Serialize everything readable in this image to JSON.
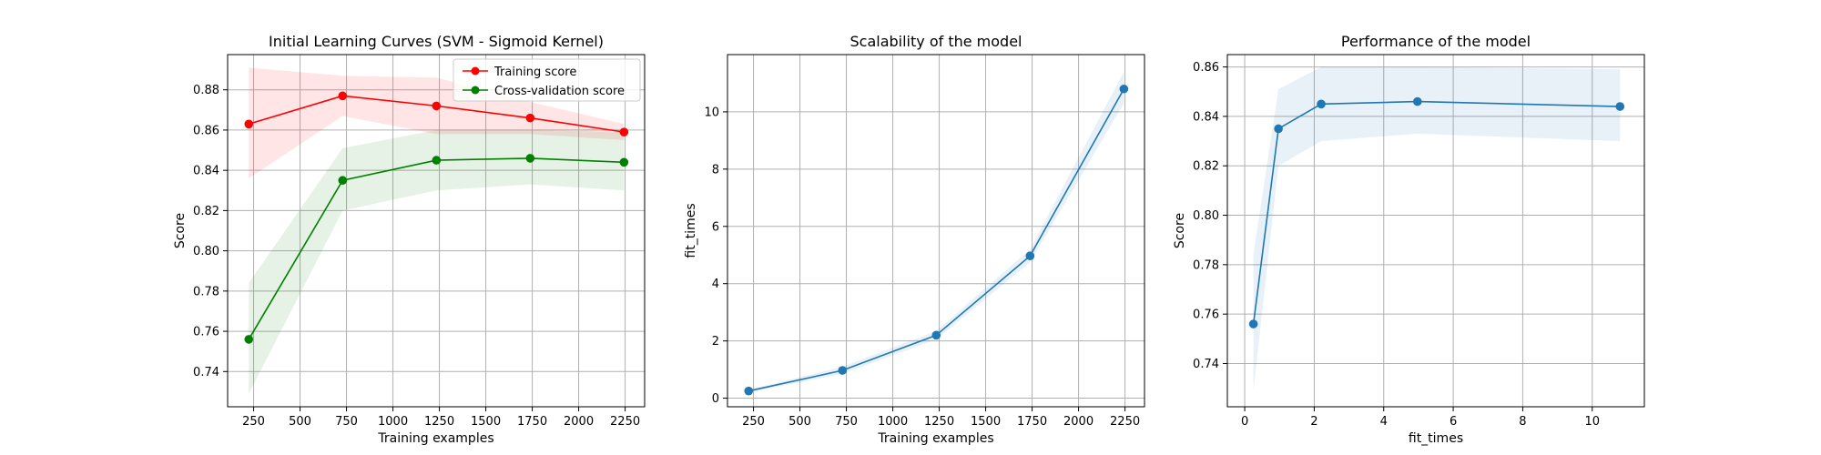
{
  "chart_data": [
    {
      "type": "line",
      "title": "Initial Learning Curves (SVM - Sigmoid Kernel)",
      "xlabel": "Training examples",
      "ylabel": "Score",
      "x": [
        224,
        729,
        1234,
        1739,
        2244
      ],
      "xlim": [
        110,
        2355
      ],
      "ylim": [
        0.7225,
        0.8975
      ],
      "xticks": [
        250,
        500,
        750,
        1000,
        1250,
        1500,
        1750,
        2000,
        2250
      ],
      "yticks": [
        0.74,
        0.76,
        0.78,
        0.8,
        0.82,
        0.84,
        0.86,
        0.88
      ],
      "ytick_decimals": 2,
      "grid": true,
      "legend": "top-right",
      "series": [
        {
          "name": "Training score",
          "color": "#ff0000",
          "values": [
            0.863,
            0.877,
            0.872,
            0.866,
            0.859
          ],
          "band_low": [
            0.836,
            0.867,
            0.858,
            0.858,
            0.855
          ],
          "band_high": [
            0.891,
            0.887,
            0.886,
            0.874,
            0.863
          ]
        },
        {
          "name": "Cross-validation score",
          "color": "#008000",
          "values": [
            0.756,
            0.835,
            0.845,
            0.846,
            0.844
          ],
          "band_low": [
            0.729,
            0.82,
            0.83,
            0.833,
            0.83
          ],
          "band_high": [
            0.784,
            0.851,
            0.86,
            0.86,
            0.859
          ]
        }
      ]
    },
    {
      "type": "line",
      "title": "Scalability of the model",
      "xlabel": "Training examples",
      "ylabel": "fit_times",
      "x": [
        224,
        729,
        1234,
        1739,
        2244
      ],
      "xlim": [
        110,
        2355
      ],
      "ylim": [
        -0.3,
        12.0
      ],
      "xticks": [
        250,
        500,
        750,
        1000,
        1250,
        1500,
        1750,
        2000,
        2250
      ],
      "yticks": [
        0,
        2,
        4,
        6,
        8,
        10
      ],
      "ytick_decimals": 0,
      "grid": true,
      "series": [
        {
          "color": "#1f77b4",
          "values": [
            0.25,
            0.97,
            2.2,
            4.97,
            10.8
          ],
          "band_low": [
            0.2,
            0.85,
            2.05,
            4.75,
            10.3
          ],
          "band_high": [
            0.3,
            1.1,
            2.35,
            5.2,
            11.4
          ]
        }
      ]
    },
    {
      "type": "line",
      "title": "Performance of the model",
      "xlabel": "fit_times",
      "ylabel": "Score",
      "x": [
        0.25,
        0.97,
        2.2,
        4.97,
        10.8
      ],
      "xlim": [
        -0.5,
        11.5
      ],
      "ylim": [
        0.7225,
        0.865
      ],
      "xticks": [
        0,
        2,
        4,
        6,
        8,
        10
      ],
      "yticks": [
        0.74,
        0.76,
        0.78,
        0.8,
        0.82,
        0.84,
        0.86
      ],
      "ytick_decimals": 2,
      "grid": true,
      "series": [
        {
          "color": "#1f77b4",
          "values": [
            0.756,
            0.835,
            0.845,
            0.846,
            0.844
          ],
          "band_low": [
            0.729,
            0.82,
            0.83,
            0.833,
            0.83
          ],
          "band_high": [
            0.784,
            0.851,
            0.86,
            0.86,
            0.859
          ]
        }
      ]
    }
  ]
}
